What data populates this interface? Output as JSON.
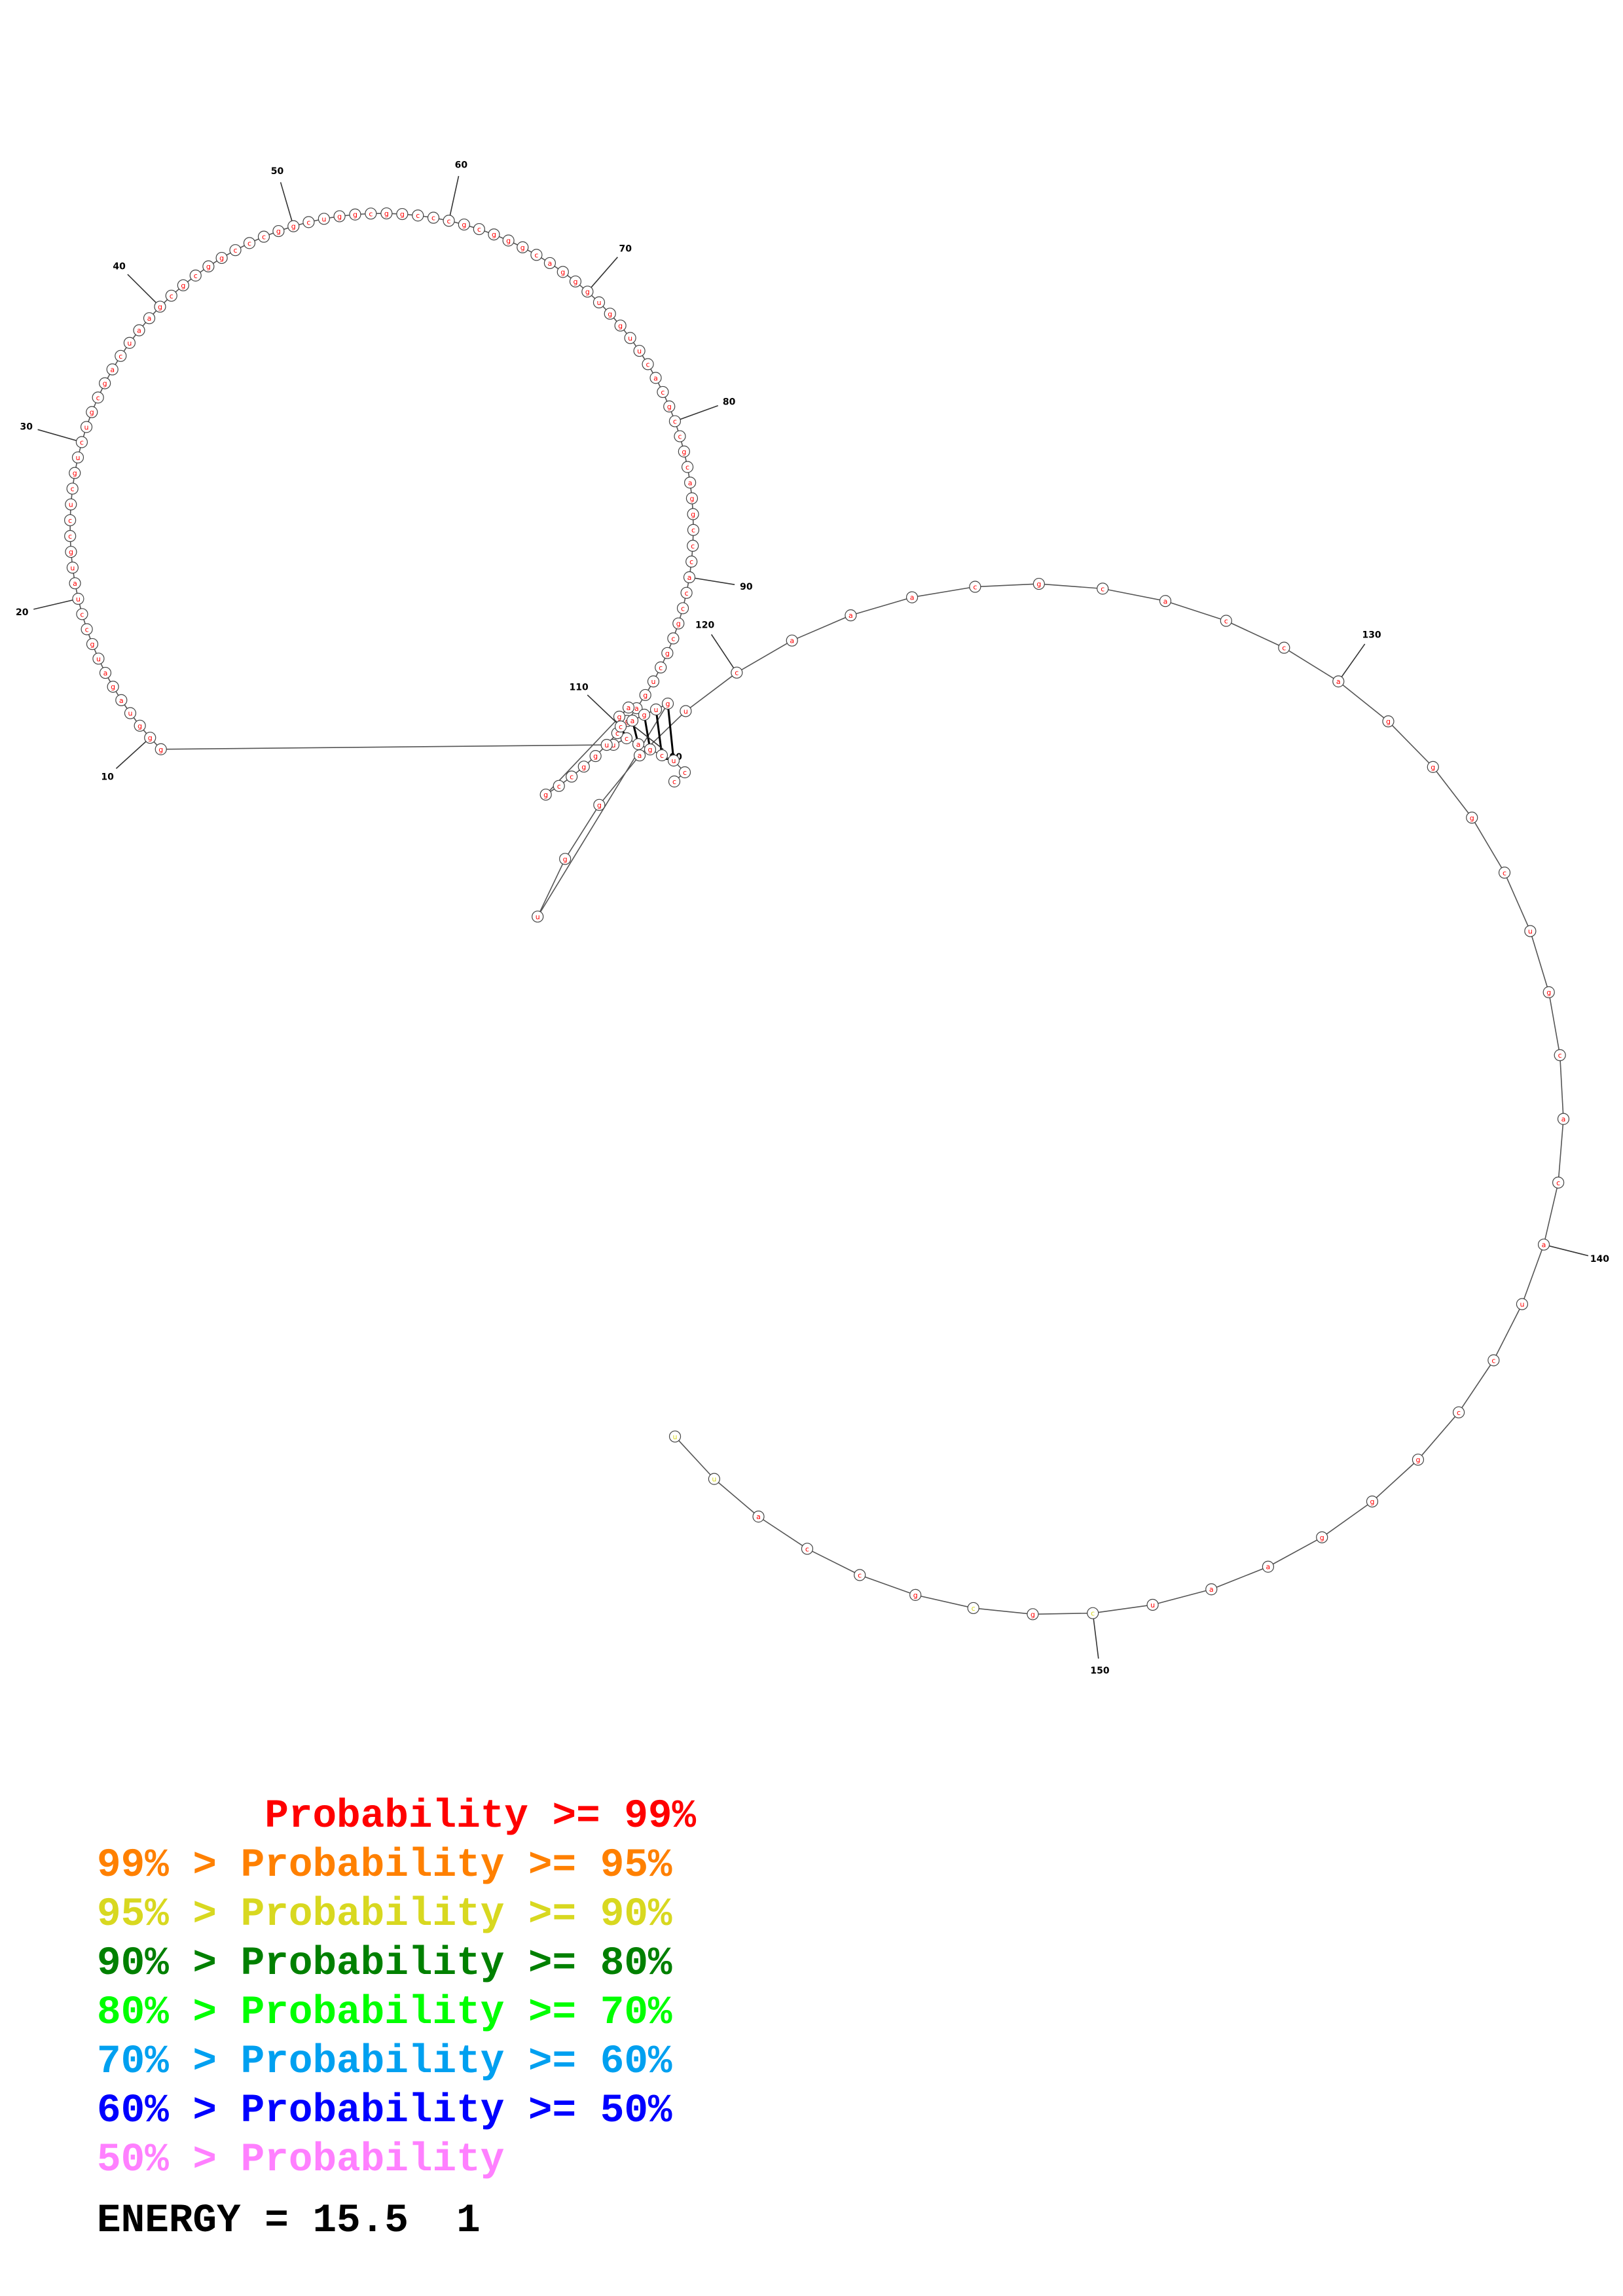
{
  "diagram": {
    "type": "rna-secondary-structure",
    "length": 158,
    "sequence": "ccucgacuggguagaugccuaugccucgucugcgacuaagcgcggcccggcuggcggcccgcgggcagggugguucacgccgcaggcccaccgcgcugagcuggccgagcaguguggaucaaacgcaccagggcugcacauccgggaaucgcgccauu",
    "base_pairs": [
      [
        3,
        114
      ],
      [
        4,
        113
      ],
      [
        5,
        112
      ],
      [
        6,
        111
      ],
      [
        7,
        110
      ]
    ],
    "tick_labels": [
      10,
      20,
      30,
      40,
      50,
      60,
      70,
      80,
      90,
      100,
      110,
      120,
      130,
      140,
      150
    ],
    "probability_colors": {
      "ge99": "#ff0000",
      "95to99": "#ff8000",
      "90to95": "#d8d820",
      "80to90": "#008000",
      "70to80": "#00ff00",
      "60to70": "#00a0f0",
      "50to60": "#0000ff",
      "lt50": "#ff80ff"
    },
    "nucleotide_probability": {
      "default": "ge99",
      "by_index": {
        "150": "90to95",
        "152": "90to95",
        "157": "90to95",
        "158": "90to95"
      }
    }
  },
  "legend": [
    {
      "text": "       Probability >= 99%",
      "color": "#ff0000"
    },
    {
      "text": "99% > Probability >= 95%",
      "color": "#ff8000"
    },
    {
      "text": "95% > Probability >= 90%",
      "color": "#d8d820"
    },
    {
      "text": "90% > Probability >= 80%",
      "color": "#008000"
    },
    {
      "text": "80% > Probability >= 70%",
      "color": "#00ff00"
    },
    {
      "text": "70% > Probability >= 60%",
      "color": "#00a0f0"
    },
    {
      "text": "60% > Probability >= 50%",
      "color": "#0000ff"
    },
    {
      "text": "50% > Probability",
      "color": "#ff80ff"
    }
  ],
  "energy": {
    "label": "ENERGY = 15.5  1"
  }
}
